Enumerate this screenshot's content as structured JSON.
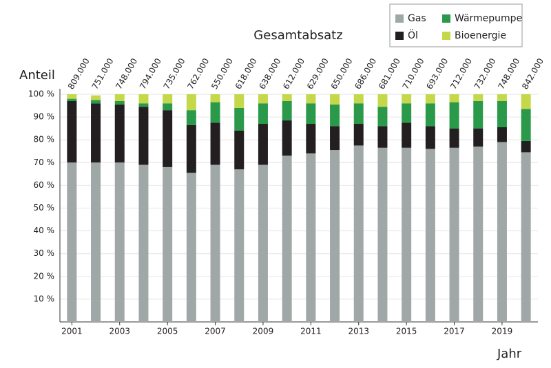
{
  "chart_data": {
    "type": "bar",
    "stacked": true,
    "title": "Gesamtabsatz",
    "y_label": "Anteil",
    "x_label": "Jahr",
    "categories": [
      "2001",
      null,
      "2003",
      null,
      "2005",
      null,
      "2007",
      null,
      "2009",
      null,
      "2011",
      null,
      "2013",
      null,
      "2015",
      null,
      "2017",
      null,
      "2019",
      null
    ],
    "series": [
      {
        "name": "Gas",
        "color": "#a0a8a7",
        "values": [
          70,
          70,
          70,
          69,
          68,
          65.5,
          69,
          67,
          69,
          73,
          74,
          75.5,
          77.5,
          76.5,
          76.5,
          76,
          76.5,
          77,
          79,
          74.5
        ]
      },
      {
        "name": "Öl",
        "color": "#231f20",
        "values": [
          27,
          26,
          25.5,
          25.5,
          25,
          21,
          18.5,
          17,
          18,
          15.5,
          13,
          10.5,
          9.5,
          9.5,
          11,
          10,
          8.5,
          8,
          6.5,
          5
        ]
      },
      {
        "name": "Wärmepumpe",
        "color": "#2a9a4a",
        "values": [
          1,
          1.5,
          1.5,
          1.5,
          3,
          6.5,
          9,
          10,
          9,
          8.5,
          9,
          9.5,
          9,
          8.5,
          8.5,
          10,
          11.5,
          12,
          11.5,
          14
        ]
      },
      {
        "name": "Bioenergie",
        "color": "#c5d84a",
        "values": [
          2,
          2,
          3,
          4,
          4,
          7,
          3.5,
          6,
          4,
          3,
          4,
          4.5,
          4,
          5.5,
          4,
          4,
          3.5,
          3,
          3,
          6.5
        ]
      }
    ],
    "totals": {
      "values": [
        809000,
        751000,
        748000,
        794000,
        735000,
        762000,
        550000,
        618000,
        638000,
        612000,
        629000,
        650000,
        686000,
        681000,
        710000,
        693000,
        712000,
        732000,
        748000,
        842000
      ],
      "value_labels": [
        "809.000",
        "751.000",
        "748.000",
        "794.000",
        "735.000",
        "762.000",
        "550.000",
        "618.000",
        "638.000",
        "612.000",
        "629.000",
        "650.000",
        "686.000",
        "681.000",
        "710.000",
        "693.000",
        "712.000",
        "732.000",
        "748.000",
        "842.000"
      ]
    },
    "ylim": [
      0,
      100
    ],
    "yticks": [
      {
        "value": 10,
        "label": "10 %"
      },
      {
        "value": 20,
        "label": "20 %"
      },
      {
        "value": 30,
        "label": "30 %"
      },
      {
        "value": 40,
        "label": "40 %"
      },
      {
        "value": 50,
        "label": "50 %"
      },
      {
        "value": 60,
        "label": "60 %"
      },
      {
        "value": 70,
        "label": "70 %"
      },
      {
        "value": 80,
        "label": "80 %"
      },
      {
        "value": 90,
        "label": "90 %"
      },
      {
        "value": 100,
        "label": "100 %"
      }
    ],
    "grid": true,
    "legend_position": "top-right"
  }
}
